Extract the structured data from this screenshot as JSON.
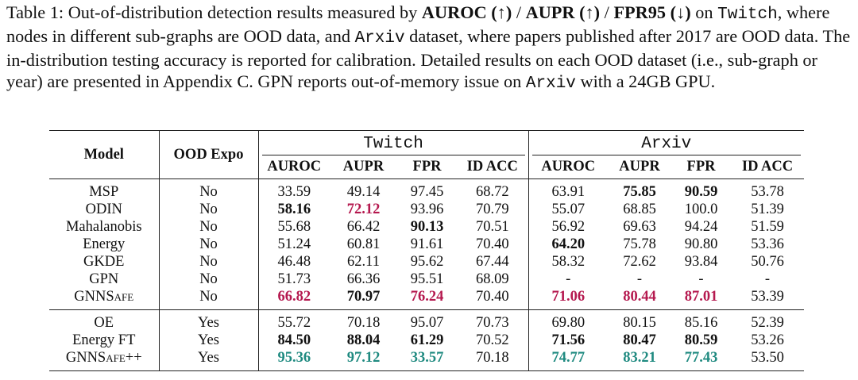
{
  "caption": [
    {
      "text": "Table 1: Out-of-distribution detection results measured by "
    },
    {
      "text": "AUROC (↑)",
      "style": "bold"
    },
    {
      "text": " / "
    },
    {
      "text": "AUPR (↑)",
      "style": "bold"
    },
    {
      "text": " / "
    },
    {
      "text": "FPR95 (↓)",
      "style": "bold"
    },
    {
      "text": " on "
    },
    {
      "text": "Twitch",
      "style": "mono"
    },
    {
      "text": ", where nodes in different sub-graphs are OOD data, and "
    },
    {
      "text": "Arxiv",
      "style": "mono"
    },
    {
      "text": " dataset, where papers published after 2017 are OOD data. The in-distribution testing accuracy is reported for calibration. Detailed results on each OOD dataset (i.e., sub-graph or year) are presented in Appendix C. GPN reports out-of-memory issue on "
    },
    {
      "text": "Arxiv",
      "style": "mono"
    },
    {
      "text": " with a 24GB GPU."
    }
  ],
  "table": {
    "header": {
      "model": "Model",
      "ood_expo": "OOD Expo",
      "datasets": [
        "Twitch",
        "Arxiv"
      ],
      "metrics": [
        "AUROC",
        "AUPR",
        "FPR",
        "ID ACC",
        "AUROC",
        "AUPR",
        "FPR",
        "ID ACC"
      ]
    },
    "groups": [
      {
        "rows": [
          {
            "model": "MSP",
            "ood_expo": "No",
            "cells": [
              "33.59",
              "49.14",
              "97.45",
              "68.72",
              "63.91",
              {
                "text": "75.85",
                "bold": true
              },
              {
                "text": "90.59",
                "bold": true
              },
              "53.78"
            ]
          },
          {
            "model": "ODIN",
            "ood_expo": "No",
            "cells": [
              {
                "text": "58.16",
                "bold": true
              },
              {
                "text": "72.12",
                "bold": true,
                "color": "#b5194f"
              },
              "93.96",
              "70.79",
              "55.07",
              "68.85",
              "100.0",
              "51.39"
            ]
          },
          {
            "model": "Mahalanobis",
            "ood_expo": "No",
            "cells": [
              "55.68",
              "66.42",
              {
                "text": "90.13",
                "bold": true
              },
              "70.51",
              "56.92",
              "69.63",
              "94.24",
              "51.59"
            ]
          },
          {
            "model": "Energy",
            "ood_expo": "No",
            "cells": [
              "51.24",
              "60.81",
              "91.61",
              "70.40",
              {
                "text": "64.20",
                "bold": true
              },
              "75.78",
              "90.80",
              "53.36"
            ]
          },
          {
            "model": "GKDE",
            "ood_expo": "No",
            "cells": [
              "46.48",
              "62.11",
              "95.62",
              "67.44",
              "58.32",
              "72.62",
              "93.84",
              "50.76"
            ]
          },
          {
            "model": "GPN",
            "ood_expo": "No",
            "cells": [
              "51.73",
              "66.36",
              "95.51",
              "68.09",
              "-",
              "-",
              "-",
              "-"
            ]
          },
          {
            "model": "GNNSafe",
            "smallcaps": true,
            "ood_expo": "No",
            "cells": [
              {
                "text": "66.82",
                "bold": true,
                "color": "#b5194f"
              },
              {
                "text": "70.97",
                "bold": true
              },
              {
                "text": "76.24",
                "bold": true,
                "color": "#b5194f"
              },
              "70.40",
              {
                "text": "71.06",
                "bold": true,
                "color": "#b5194f"
              },
              {
                "text": "80.44",
                "bold": true,
                "color": "#b5194f"
              },
              {
                "text": "87.01",
                "bold": true,
                "color": "#b5194f"
              },
              "53.39"
            ]
          }
        ]
      },
      {
        "rows": [
          {
            "model": "OE",
            "ood_expo": "Yes",
            "cells": [
              "55.72",
              "70.18",
              "95.07",
              "70.73",
              "69.80",
              "80.15",
              "85.16",
              "52.39"
            ]
          },
          {
            "model": "Energy FT",
            "ood_expo": "Yes",
            "cells": [
              {
                "text": "84.50",
                "bold": true
              },
              {
                "text": "88.04",
                "bold": true
              },
              {
                "text": "61.29",
                "bold": true
              },
              "70.52",
              {
                "text": "71.56",
                "bold": true
              },
              {
                "text": "80.47",
                "bold": true
              },
              {
                "text": "80.59",
                "bold": true
              },
              "53.26"
            ]
          },
          {
            "model": "GNNSafe++",
            "smallcaps": true,
            "ood_expo": "Yes",
            "cells": [
              {
                "text": "95.36",
                "bold": true,
                "color": "#1f8a80"
              },
              {
                "text": "97.12",
                "bold": true,
                "color": "#1f8a80"
              },
              {
                "text": "33.57",
                "bold": true,
                "color": "#1f8a80"
              },
              "70.18",
              {
                "text": "74.77",
                "bold": true,
                "color": "#1f8a80"
              },
              {
                "text": "83.21",
                "bold": true,
                "color": "#1f8a80"
              },
              {
                "text": "77.43",
                "bold": true,
                "color": "#1f8a80"
              },
              "53.50"
            ]
          }
        ]
      }
    ]
  }
}
